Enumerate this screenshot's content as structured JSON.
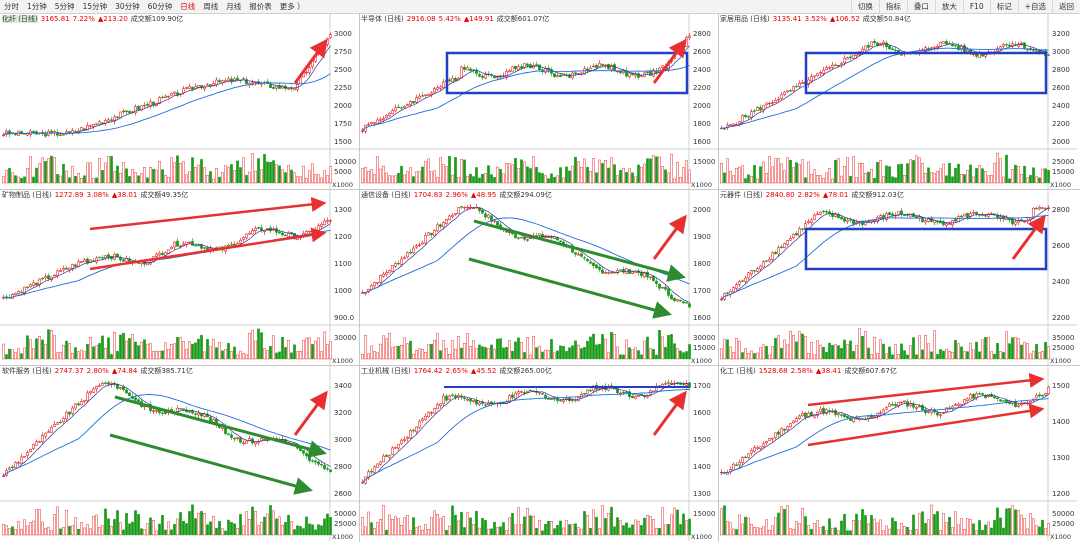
{
  "toolbar": {
    "left": [
      "分时",
      "1分钟",
      "5分钟",
      "15分钟",
      "30分钟",
      "60分钟",
      "日线",
      "周线",
      "月线",
      "报价表",
      "更多 ）"
    ],
    "active": "日线",
    "right": [
      "切换",
      "指标",
      "叠口",
      "放大",
      "F10",
      "标记",
      "+自选",
      "返回"
    ]
  },
  "colors": {
    "up": "#e60000",
    "down": "#1a9a1a",
    "ma_fast": "#333399",
    "ma_slow": "#1f6fd8",
    "blue_box": "#2040c8",
    "red_arrow": "#e83030",
    "green_arrow": "#2e8b2e"
  },
  "vol_unit": "X1000",
  "panels": [
    {
      "name": "化纤 (日线)",
      "selected": true,
      "price": "3165.81",
      "pct": "7.22%",
      "change": "▲213.20",
      "vol_label": "成交额",
      "vol": "109.90亿",
      "y_ticks": [
        "3000",
        "2750",
        "2500",
        "2250",
        "2000",
        "1750",
        "1500"
      ],
      "vol_ticks": [
        "10000",
        "5000"
      ],
      "annotations": [
        "red-arrow-up"
      ]
    },
    {
      "name": "半导体 (日线)",
      "selected": false,
      "price": "2916.08",
      "pct": "5.42%",
      "change": "▲149.91",
      "vol_label": "成交额",
      "vol": "601.07亿",
      "y_ticks": [
        "2800",
        "2600",
        "2400",
        "2200",
        "2000",
        "1800",
        "1600"
      ],
      "vol_ticks": [
        "15000"
      ],
      "annotations": [
        "blue-box",
        "red-arrow-up"
      ]
    },
    {
      "name": "家居用品 (日线)",
      "selected": false,
      "price": "3135.41",
      "pct": "3.52%",
      "change": "▲106.52",
      "vol_label": "成交额",
      "vol": "50.84亿",
      "y_ticks": [
        "3200",
        "3000",
        "2800",
        "2600",
        "2400",
        "2200",
        "2000"
      ],
      "vol_ticks": [
        "25000",
        "15000"
      ],
      "annotations": [
        "blue-box"
      ]
    },
    {
      "name": "矿物制品 (日线)",
      "selected": false,
      "price": "1272.89",
      "pct": "3.08%",
      "change": "▲38.01",
      "vol_label": "成交额",
      "vol": "49.35亿",
      "y_ticks": [
        "1300",
        "1200",
        "1100",
        "1000",
        "900.0"
      ],
      "vol_ticks": [
        "30000"
      ],
      "annotations": [
        "red-channel"
      ]
    },
    {
      "name": "通信设备 (日线)",
      "selected": false,
      "price": "1704.83",
      "pct": "2.96%",
      "change": "▲48.95",
      "vol_label": "成交额",
      "vol": "294.09亿",
      "y_ticks": [
        "2000",
        "1900",
        "1800",
        "1700",
        "1600"
      ],
      "vol_ticks": [
        "30000",
        "15000"
      ],
      "annotations": [
        "green-channel",
        "red-arrow-up"
      ]
    },
    {
      "name": "元器件 (日线)",
      "selected": false,
      "price": "2840.80",
      "pct": "2.82%",
      "change": "▲78.01",
      "vol_label": "成交额",
      "vol": "912.03亿",
      "y_ticks": [
        "2800",
        "2600",
        "2400",
        "2200"
      ],
      "vol_ticks": [
        "35000",
        "25000"
      ],
      "annotations": [
        "blue-box",
        "red-arrow-up"
      ]
    },
    {
      "name": "软件服务 (日线)",
      "selected": false,
      "price": "2747.37",
      "pct": "2.80%",
      "change": "▲74.84",
      "vol_label": "成交额",
      "vol": "385.71亿",
      "y_ticks": [
        "3400",
        "3200",
        "3000",
        "2800",
        "2600"
      ],
      "vol_ticks": [
        "50000",
        "25000"
      ],
      "annotations": [
        "green-channel",
        "red-arrow-up"
      ]
    },
    {
      "name": "工业机械 (日线)",
      "selected": false,
      "price": "1764.42",
      "pct": "2.65%",
      "change": "▲45.52",
      "vol_label": "成交额",
      "vol": "265.00亿",
      "y_ticks": [
        "1700",
        "1600",
        "1500",
        "1400",
        "1300"
      ],
      "vol_ticks": [
        "15000"
      ],
      "annotations": [
        "blue-line",
        "red-arrow-up"
      ]
    },
    {
      "name": "化工 (日线)",
      "selected": false,
      "price": "1528.68",
      "pct": "2.58%",
      "change": "▲38.41",
      "vol_label": "成交额",
      "vol": "607.67亿",
      "y_ticks": [
        "1500",
        "1400",
        "1300",
        "1200"
      ],
      "vol_ticks": [
        "50000",
        "25000"
      ],
      "annotations": [
        "red-channel"
      ]
    }
  ]
}
